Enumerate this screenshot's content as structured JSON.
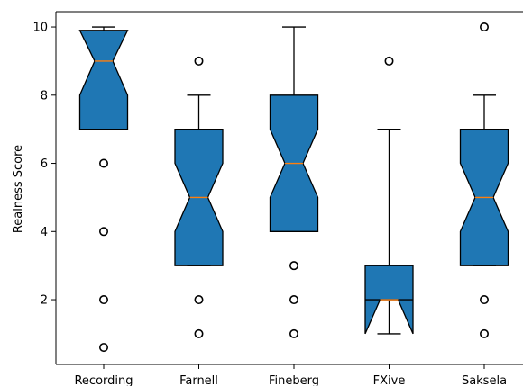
{
  "chart_data": {
    "type": "box",
    "notched": true,
    "xlabel": "",
    "ylabel": "Realness Score",
    "ylim": [
      0.1,
      10.45
    ],
    "yticks": [
      2,
      4,
      6,
      8,
      10
    ],
    "categories": [
      "Recording",
      "Farnell",
      "Fineberg",
      "FXive",
      "Saksela"
    ],
    "boxes": [
      {
        "label": "Recording",
        "q1": 7,
        "median": 9,
        "q3": 9.9,
        "notch_low": 8,
        "notch_high": 9.9,
        "whisker_low": 7,
        "whisker_high": 10,
        "outliers": [
          6,
          4,
          2,
          0.6
        ]
      },
      {
        "label": "Farnell",
        "q1": 3,
        "median": 5,
        "q3": 7,
        "notch_low": 4,
        "notch_high": 6,
        "whisker_low": 3,
        "whisker_high": 8,
        "outliers": [
          9,
          2,
          1
        ]
      },
      {
        "label": "Fineberg",
        "q1": 4,
        "median": 6,
        "q3": 8,
        "notch_low": 5,
        "notch_high": 7,
        "whisker_low": 4,
        "whisker_high": 10,
        "outliers": [
          3,
          2,
          1
        ]
      },
      {
        "label": "FXive",
        "q1": 2,
        "median": 2,
        "q3": 3,
        "notch_low": 1,
        "notch_high": 2,
        "whisker_low": 1,
        "whisker_high": 7,
        "outliers": [
          9
        ]
      },
      {
        "label": "Saksela",
        "q1": 3,
        "median": 5,
        "q3": 7,
        "notch_low": 4,
        "notch_high": 6,
        "whisker_low": 3,
        "whisker_high": 8,
        "outliers": [
          10,
          2,
          1
        ]
      }
    ],
    "colors": {
      "box_fill": "#1f77b4",
      "median": "#ff7f0e",
      "edge": "#000000"
    },
    "grid": false,
    "legend": "none"
  }
}
